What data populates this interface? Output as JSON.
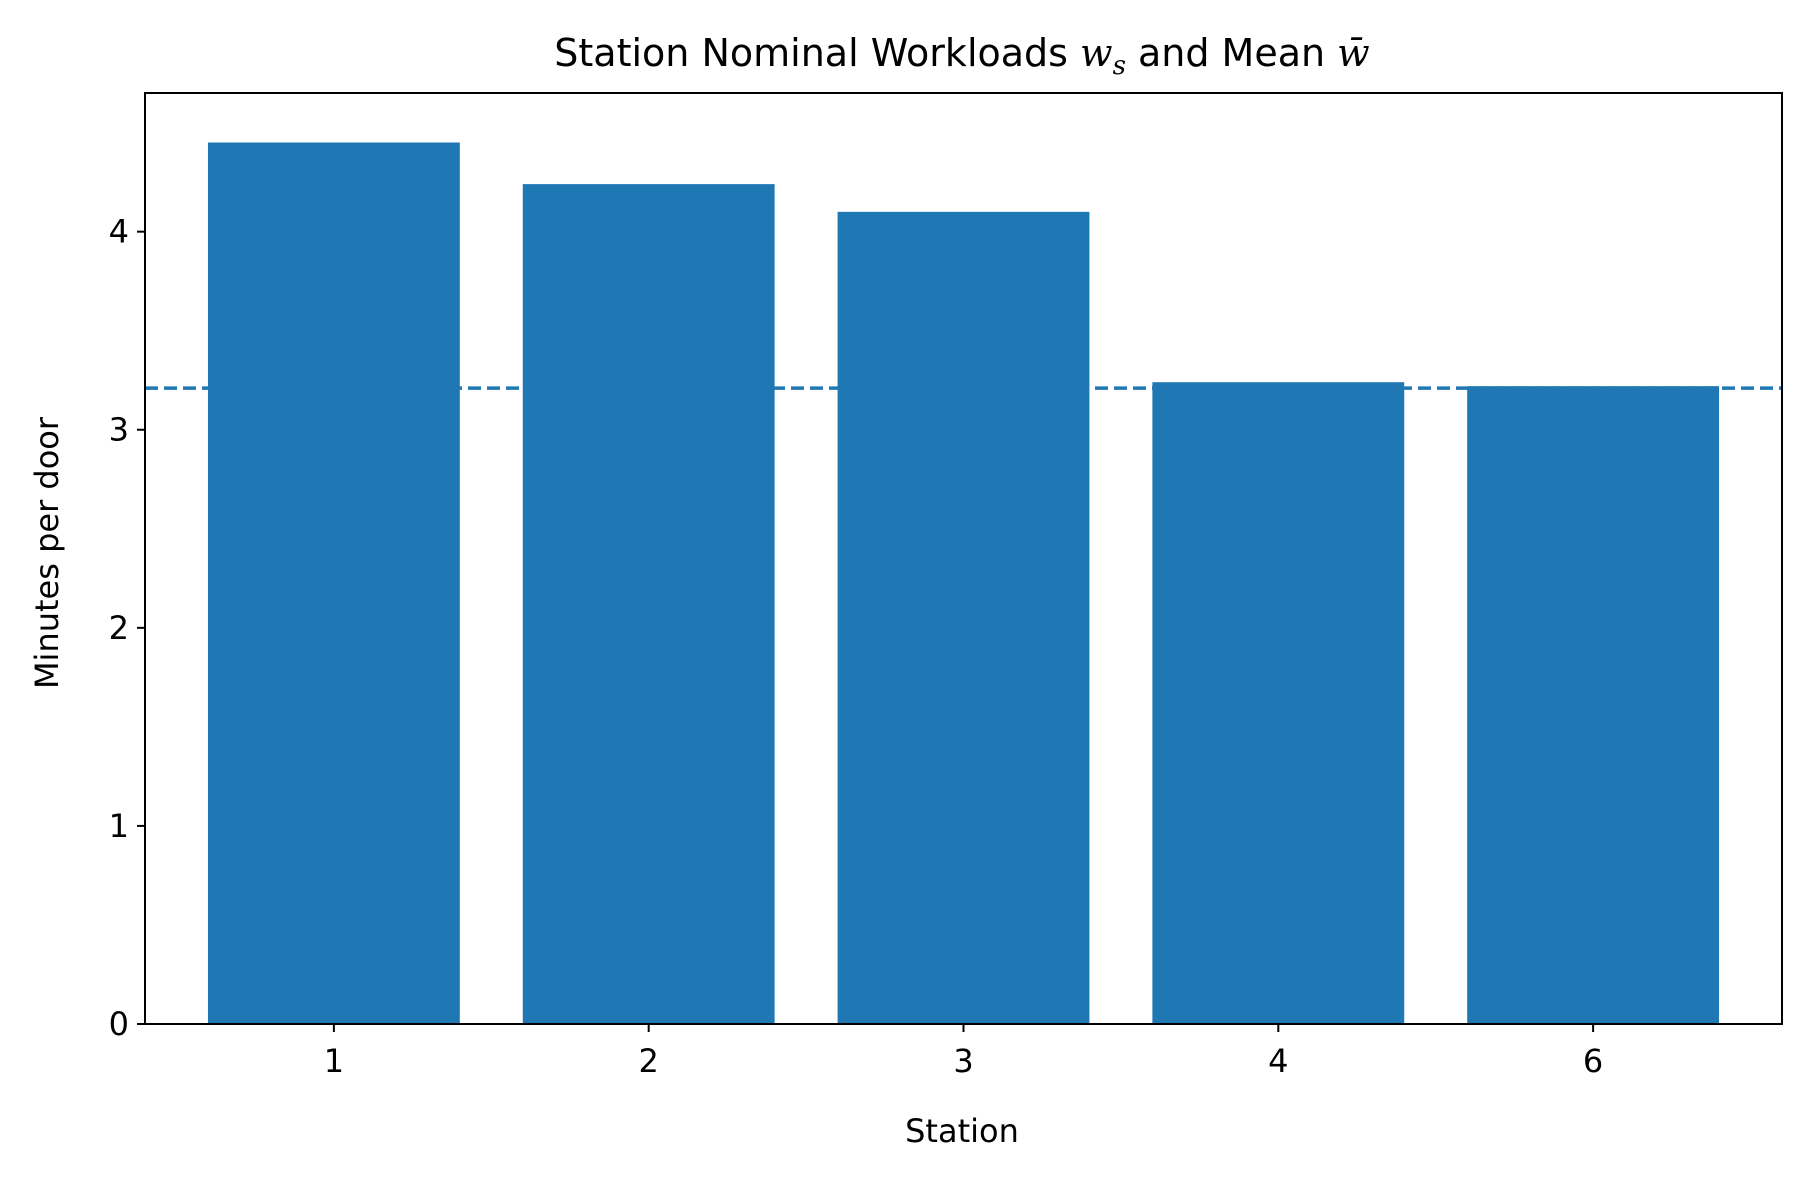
{
  "chart_data": {
    "type": "bar",
    "title": {
      "prefix": "Station Nominal Workloads ",
      "symbol_1": "w",
      "symbol_1_sub": "s",
      "middle": " and Mean ",
      "symbol_2": "w̄"
    },
    "xlabel": "Station",
    "ylabel": "Minutes per door",
    "categories": [
      "1",
      "2",
      "3",
      "4",
      "6"
    ],
    "values": [
      4.45,
      4.24,
      4.1,
      3.24,
      3.22
    ],
    "mean": 3.21,
    "ylim": [
      0,
      4.7
    ],
    "yticks": [
      0,
      1,
      2,
      3,
      4
    ],
    "bar_color": "#1f77b4",
    "mean_line_color": "#1f77b4",
    "mean_line_style": "dashed",
    "grid": false,
    "legend": false
  }
}
